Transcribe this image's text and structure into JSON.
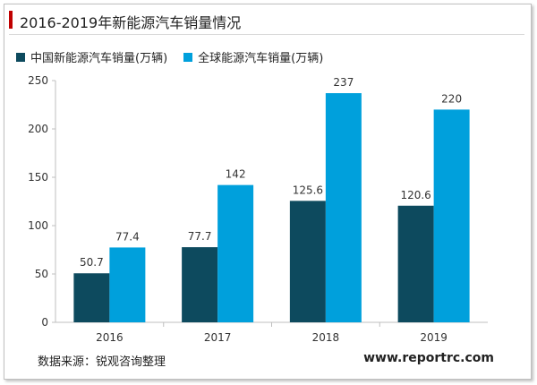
{
  "title": "2016-2019年新能源汽车销量情况",
  "source": "数据来源：锐观咨询整理",
  "website": "www.reportrc.com",
  "colors": {
    "accent": "#c00000",
    "china": "#0d4a5e",
    "global": "#00a0dc"
  },
  "chart_data": {
    "type": "bar",
    "title": "2016-2019年新能源汽车销量情况",
    "categories": [
      "2016",
      "2017",
      "2018",
      "2019"
    ],
    "series": [
      {
        "name": "中国新能源汽车销量(万辆)",
        "values": [
          50.7,
          77.7,
          125.6,
          120.6
        ],
        "labels": [
          "50.7",
          "77.7",
          "125.6",
          "120.6"
        ],
        "color": "#0d4a5e"
      },
      {
        "name": "全球能源汽车销量(万辆)",
        "values": [
          77.4,
          142,
          237,
          220
        ],
        "labels": [
          "77.4",
          "142",
          "237",
          "220"
        ],
        "color": "#00a0dc"
      }
    ],
    "yticks": [
      "0",
      "50",
      "100",
      "150",
      "200",
      "250"
    ],
    "ylim": [
      0,
      250
    ],
    "xlabel": "",
    "ylabel": "",
    "legend": "top-left"
  }
}
